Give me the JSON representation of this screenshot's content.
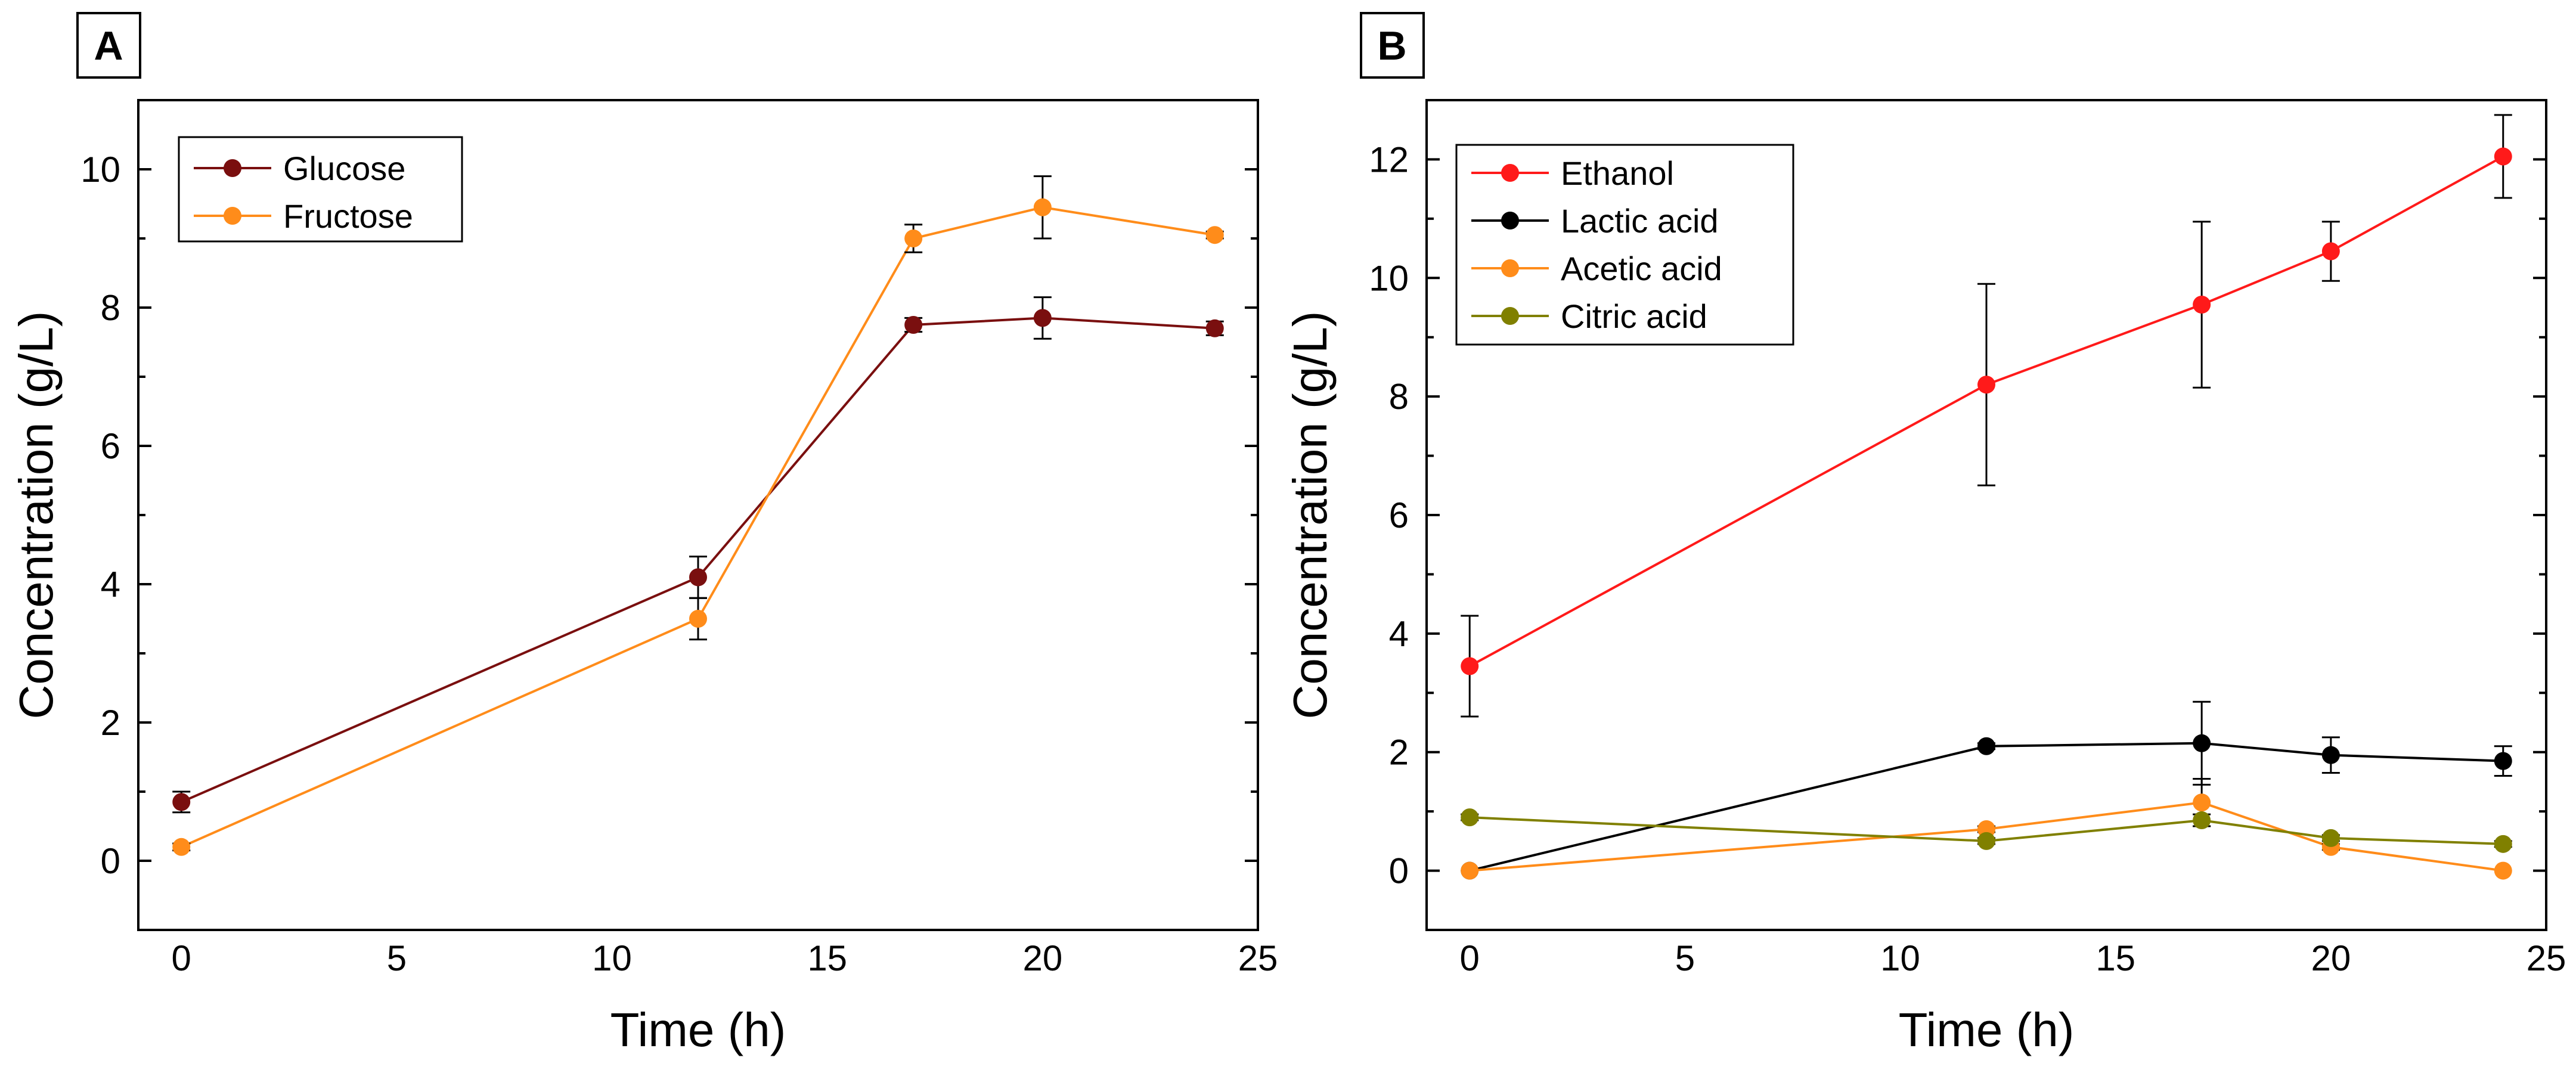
{
  "chart_data": [
    {
      "type": "line",
      "panel_label": "A",
      "xlabel": "Time (h)",
      "ylabel": "Concentration (g/L)",
      "xlim": [
        -1,
        25
      ],
      "ylim": [
        -1,
        11
      ],
      "xticks": [
        0,
        5,
        10,
        15,
        20,
        25
      ],
      "yticks": [
        0,
        2,
        4,
        6,
        8,
        10
      ],
      "legend_position": "top-left",
      "grid": false,
      "series": [
        {
          "name": "Glucose",
          "color": "#7a0f0f",
          "x": [
            0,
            12,
            17,
            20,
            24
          ],
          "y": [
            0.85,
            4.1,
            7.75,
            7.85,
            7.7
          ],
          "err": [
            0.15,
            0.3,
            0.1,
            0.3,
            0.1
          ]
        },
        {
          "name": "Fructose",
          "color": "#ff8c1a",
          "x": [
            0,
            12,
            17,
            20,
            24
          ],
          "y": [
            0.2,
            3.5,
            9.0,
            9.45,
            9.05
          ],
          "err": [
            0.05,
            0.3,
            0.2,
            0.45,
            0.05
          ]
        }
      ]
    },
    {
      "type": "line",
      "panel_label": "B",
      "xlabel": "Time (h)",
      "ylabel": "Concentration (g/L)",
      "xlim": [
        -1,
        25
      ],
      "ylim": [
        -1,
        13
      ],
      "xticks": [
        0,
        5,
        10,
        15,
        20,
        25
      ],
      "yticks": [
        0,
        2,
        4,
        6,
        8,
        10,
        12
      ],
      "legend_position": "top-left",
      "grid": false,
      "series": [
        {
          "name": "Ethanol",
          "color": "#ff1a1a",
          "x": [
            0,
            12,
            17,
            20,
            24
          ],
          "y": [
            3.45,
            8.2,
            9.55,
            10.45,
            12.05
          ],
          "err": [
            0.85,
            1.7,
            1.4,
            0.5,
            0.7
          ]
        },
        {
          "name": "Lactic acid",
          "color": "#000000",
          "x": [
            0,
            12,
            17,
            20,
            24
          ],
          "y": [
            0.0,
            2.1,
            2.15,
            1.95,
            1.85
          ],
          "err": [
            0.0,
            0.05,
            0.7,
            0.3,
            0.25
          ]
        },
        {
          "name": "Acetic acid",
          "color": "#ff8c1a",
          "x": [
            0,
            12,
            17,
            20,
            24
          ],
          "y": [
            0.0,
            0.7,
            1.15,
            0.4,
            0.0
          ],
          "err": [
            0.0,
            0.05,
            0.4,
            0.05,
            0.0
          ]
        },
        {
          "name": "Citric acid",
          "color": "#808000",
          "x": [
            0,
            12,
            17,
            20,
            24
          ],
          "y": [
            0.9,
            0.5,
            0.85,
            0.55,
            0.45
          ],
          "err": [
            0.05,
            0.05,
            0.1,
            0.05,
            0.05
          ]
        }
      ]
    }
  ]
}
